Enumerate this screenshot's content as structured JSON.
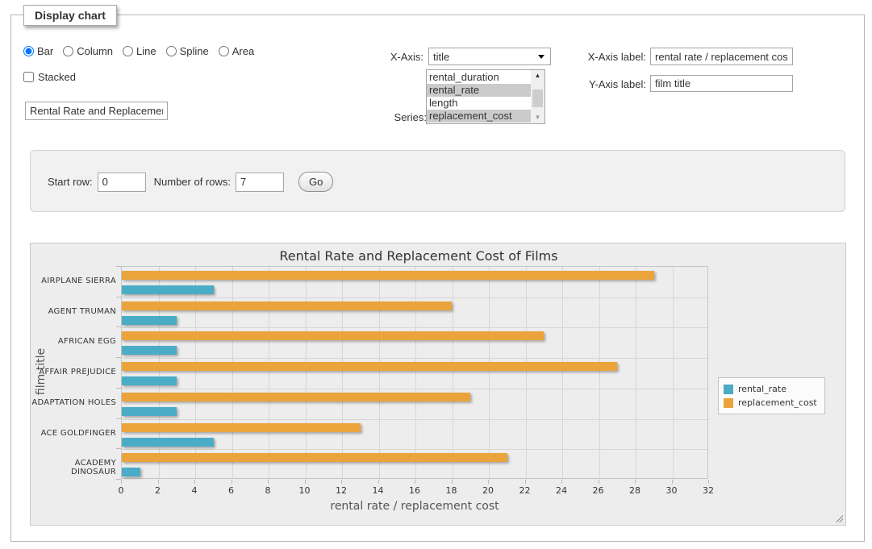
{
  "panel": {
    "legend": "Display chart"
  },
  "controls": {
    "chart_types": {
      "options": [
        "Bar",
        "Column",
        "Line",
        "Spline",
        "Area"
      ],
      "selected": "Bar"
    },
    "stacked": {
      "label": "Stacked",
      "checked": false
    },
    "title_input": {
      "value": "Rental Rate and Replacement Cost of Films"
    },
    "x_axis": {
      "label": "X-Axis:",
      "selected": "title"
    },
    "series_list": {
      "label": "Series:",
      "options": [
        {
          "label": "rental_duration",
          "selected": false
        },
        {
          "label": "rental_rate",
          "selected": true
        },
        {
          "label": "length",
          "selected": false
        },
        {
          "label": "replacement_cost",
          "selected": true
        }
      ],
      "scrollbar": {
        "up_arrow": "▲",
        "down_arrow": "▼"
      }
    },
    "x_axis_label": {
      "label": "X-Axis label:",
      "value": "rental rate / replacement cost"
    },
    "y_axis_label": {
      "label": "Y-Axis label:",
      "value": "film title"
    },
    "rows": {
      "start_label": "Start row:",
      "start_value": "0",
      "count_label": "Number of rows:",
      "count_value": "7",
      "go": "Go"
    }
  },
  "chart_data": {
    "type": "bar",
    "title": "Rental Rate and Replacement Cost of Films",
    "categories": [
      "AIRPLANE SIERRA",
      "AGENT TRUMAN",
      "AFRICAN EGG",
      "AFFAIR PREJUDICE",
      "ADAPTATION HOLES",
      "ACE GOLDFINGER",
      "ACADEMY DINOSAUR"
    ],
    "category_order": "top-to-bottom",
    "series": [
      {
        "name": "rental_rate",
        "color": "#4BACC6",
        "values": [
          4.99,
          2.99,
          2.99,
          2.99,
          2.99,
          4.99,
          0.99
        ]
      },
      {
        "name": "replacement_cost",
        "color": "#EAA43B",
        "values": [
          28.99,
          17.99,
          22.99,
          26.99,
          18.99,
          12.99,
          20.99
        ]
      }
    ],
    "bar_order_within_category": [
      "replacement_cost",
      "rental_rate"
    ],
    "xlabel": "rental rate / replacement cost",
    "ylabel": "film title",
    "xlim": [
      0,
      32
    ],
    "xtick_step": 2,
    "grid": true,
    "legend_position": "right-middle"
  }
}
